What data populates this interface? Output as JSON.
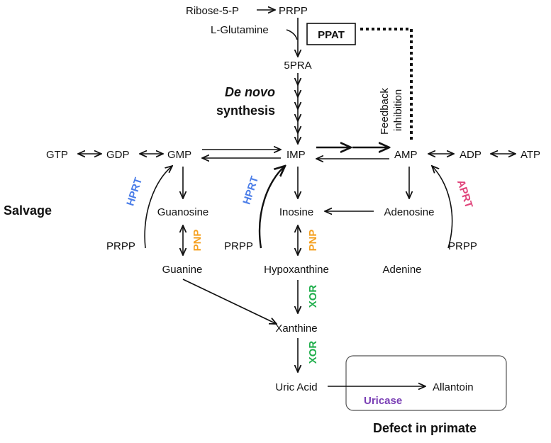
{
  "nodes": {
    "ribose5p": "Ribose-5-P",
    "prpp_top": "PRPP",
    "lglutamine": "L-Glutamine",
    "ppat": "PPAT",
    "pra5": "5PRA",
    "denovo_line1": "De novo",
    "denovo_line2": "synthesis",
    "feedback_line1": "Feedback",
    "feedback_line2": "inhibition",
    "gtp": "GTP",
    "gdp": "GDP",
    "gmp": "GMP",
    "imp": "IMP",
    "amp": "AMP",
    "adp": "ADP",
    "atp": "ATP",
    "salvage": "Salvage",
    "guanosine": "Guanosine",
    "inosine": "Inosine",
    "adenosine": "Adenosine",
    "prpp_left": "PRPP",
    "prpp_mid": "PRPP",
    "prpp_right": "PRPP",
    "guanine": "Guanine",
    "hypoxanthine": "Hypoxanthine",
    "adenine": "Adenine",
    "xanthine": "Xanthine",
    "uric_acid": "Uric Acid",
    "allantoin": "Allantoin",
    "defect": "Defect in primate"
  },
  "enzymes": {
    "hprt_left": "HPRT",
    "hprt_mid": "HPRT",
    "aprt": "APRT",
    "pnp_left": "PNP",
    "pnp_mid": "PNP",
    "xor_1": "XOR",
    "xor_2": "XOR",
    "uricase": "Uricase"
  },
  "colors": {
    "hprt": "#4a7de8",
    "aprt": "#e0457b",
    "pnp": "#f5a020",
    "xor": "#1fae4b",
    "uricase": "#7a3fb5",
    "defect": "#ee1111"
  }
}
